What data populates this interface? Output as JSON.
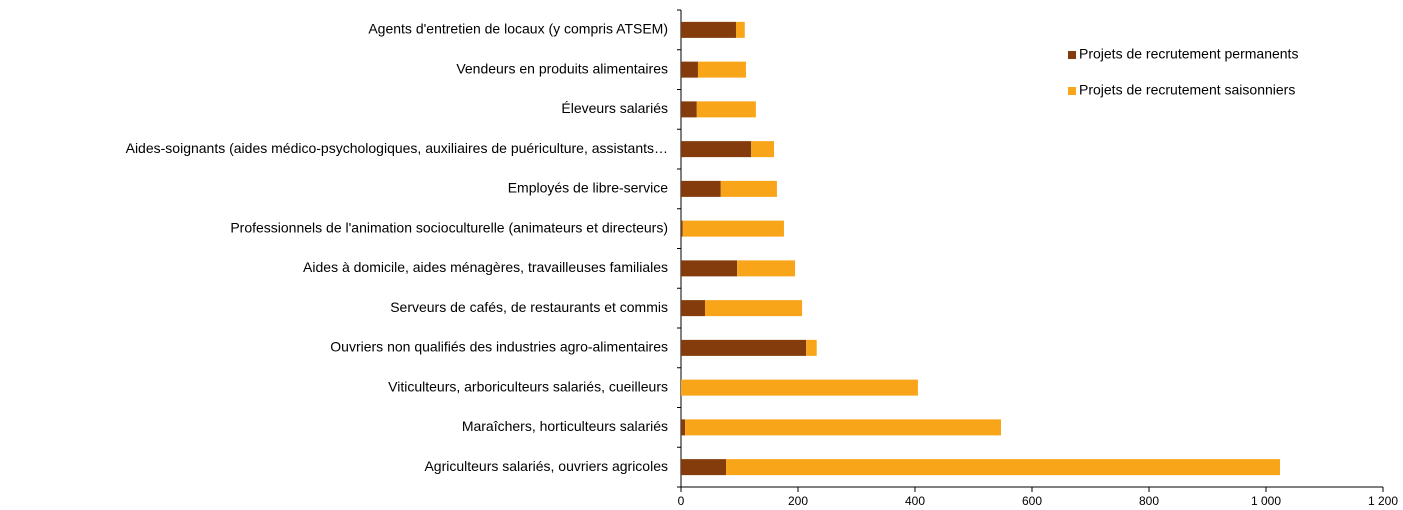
{
  "chart_data": {
    "type": "stacked-barh",
    "categories": [
      "Agents d'entretien de locaux (y compris ATSEM)",
      "Vendeurs en produits alimentaires",
      "Éleveurs salariés",
      "Aides-soignants (aides médico-psychologiques, auxiliaires de puériculture, assistants…",
      "Employés de libre-service",
      "Professionnels de l'animation socioculturelle (animateurs et directeurs)",
      "Aides à domicile, aides ménagères, travailleuses familiales",
      "Serveurs de cafés, de restaurants et commis",
      "Ouvriers non qualifiés des industries agro-alimentaires",
      "Viticulteurs, arboriculteurs salariés, cueilleurs",
      "Maraîchers, horticulteurs salariés",
      "Agriculteurs salariés, ouvriers agricoles"
    ],
    "series": [
      {
        "name": "Projets de recrutement permanents",
        "color": "#843c0c",
        "values": [
          94,
          29,
          27,
          120,
          68,
          3,
          96,
          41,
          214,
          0,
          7,
          77
        ]
      },
      {
        "name": "Projets de recrutement saisonniers",
        "color": "#f9a51a",
        "values": [
          15,
          82,
          101,
          39,
          96,
          173,
          99,
          166,
          18,
          405,
          540,
          947
        ]
      }
    ],
    "xlim": [
      0,
      1200
    ],
    "xticks": [
      0,
      200,
      400,
      600,
      800,
      {
        "value": 1000,
        "label": "1 000"
      },
      {
        "value": 1200,
        "label": "1 200"
      }
    ],
    "legend": "top-right"
  }
}
